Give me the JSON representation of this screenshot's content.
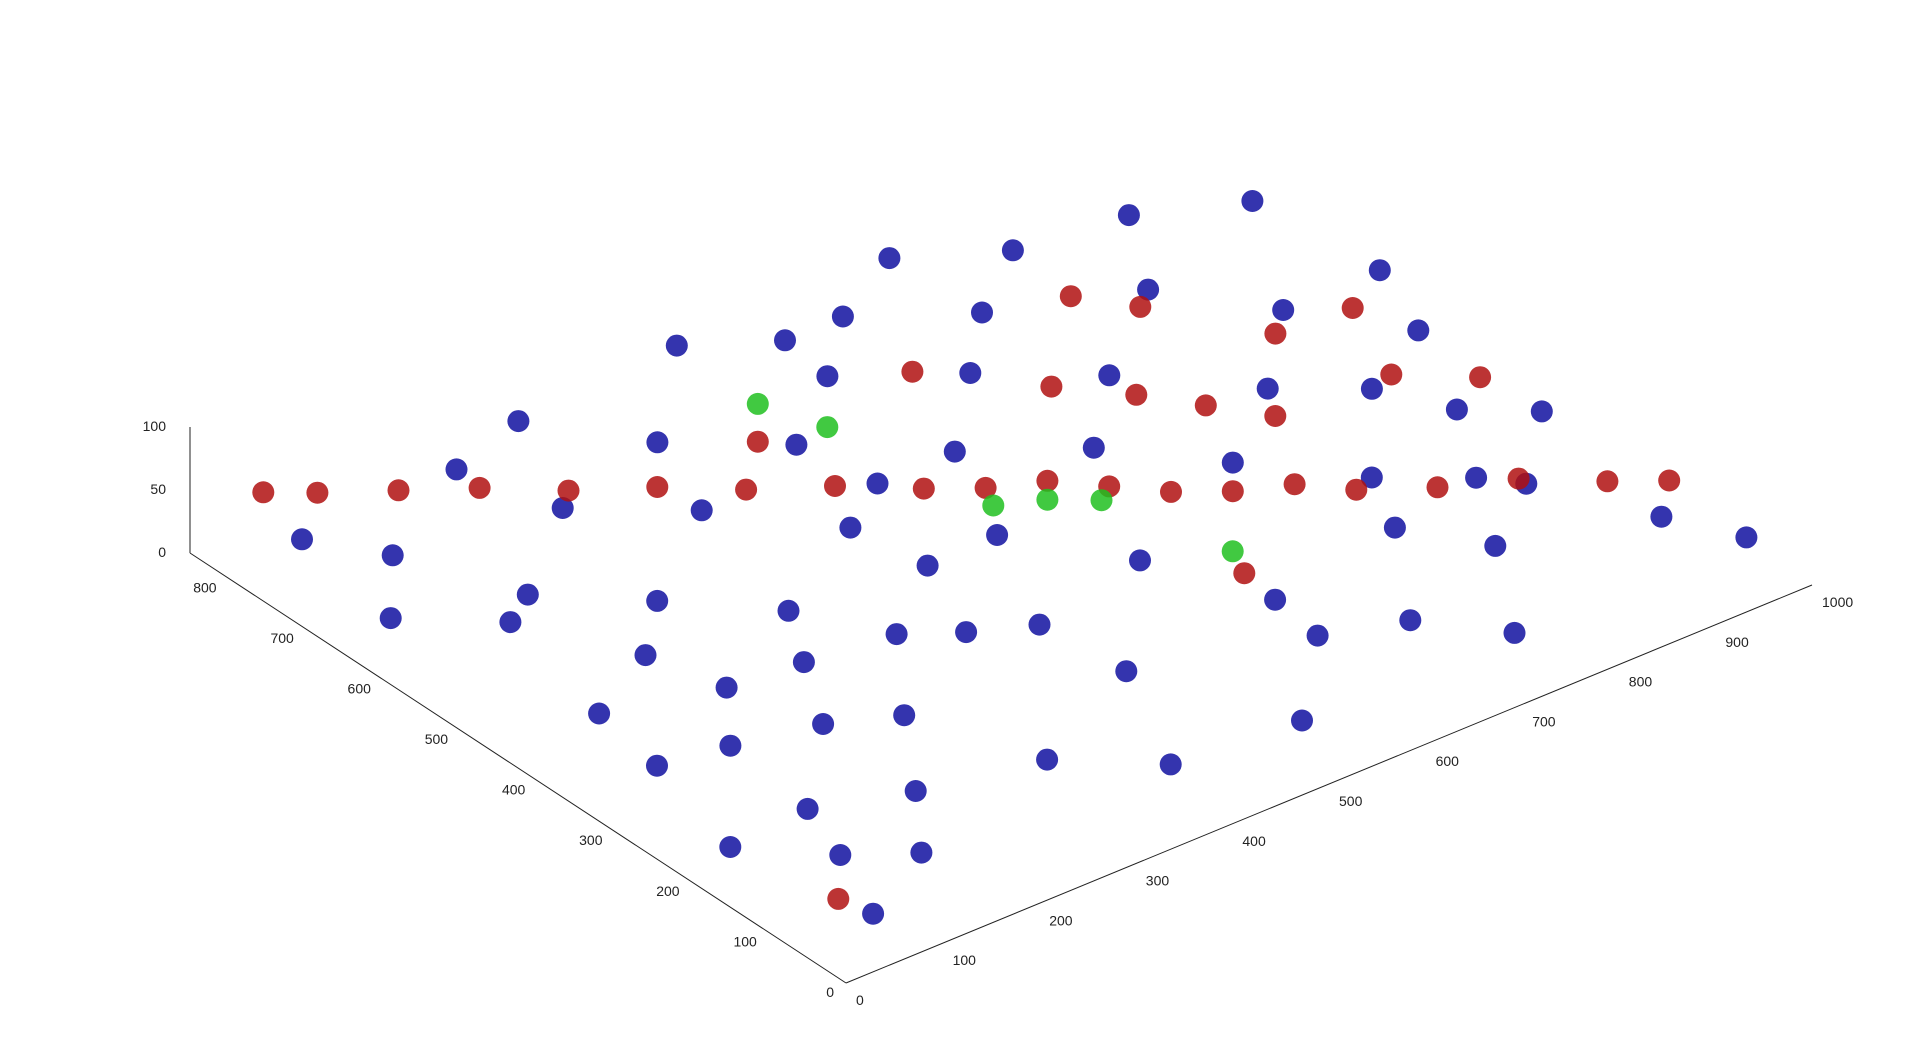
{
  "chart_data": {
    "type": "scatter",
    "projection": "3d-isometric",
    "title": "",
    "xlabel": "",
    "ylabel": "",
    "zlabel": "",
    "xlim": [
      0,
      1000
    ],
    "ylim": [
      0,
      850
    ],
    "zlim": [
      0,
      100
    ],
    "grid": false,
    "legend": "none",
    "x_ticks": [
      {
        "value": 0,
        "label": "0"
      },
      {
        "value": 100,
        "label": "100"
      },
      {
        "value": 200,
        "label": "200"
      },
      {
        "value": 300,
        "label": "300"
      },
      {
        "value": 400,
        "label": "400"
      },
      {
        "value": 500,
        "label": "500"
      },
      {
        "value": 600,
        "label": "600"
      },
      {
        "value": 700,
        "label": "700"
      },
      {
        "value": 800,
        "label": "800"
      },
      {
        "value": 900,
        "label": "900"
      },
      {
        "value": 1000,
        "label": "1000"
      }
    ],
    "y_ticks": [
      {
        "value": 0,
        "label": "0"
      },
      {
        "value": 100,
        "label": "100"
      },
      {
        "value": 200,
        "label": "200"
      },
      {
        "value": 300,
        "label": "300"
      },
      {
        "value": 400,
        "label": "400"
      },
      {
        "value": 500,
        "label": "500"
      },
      {
        "value": 600,
        "label": "600"
      },
      {
        "value": 700,
        "label": "700"
      },
      {
        "value": 800,
        "label": "800"
      }
    ],
    "z_ticks": [
      {
        "value": 0,
        "label": "0"
      },
      {
        "value": 50,
        "label": "50"
      },
      {
        "value": 100,
        "label": "100"
      }
    ],
    "series": [
      {
        "color": "#1010a0",
        "points": [
          [
            60,
            40,
            20
          ],
          [
            90,
            120,
            25
          ],
          [
            40,
            200,
            15
          ],
          [
            150,
            90,
            20
          ],
          [
            200,
            160,
            25
          ],
          [
            120,
            300,
            30
          ],
          [
            80,
            420,
            20
          ],
          [
            180,
            380,
            25
          ],
          [
            260,
            250,
            30
          ],
          [
            320,
            140,
            20
          ],
          [
            400,
            80,
            15
          ],
          [
            450,
            200,
            25
          ],
          [
            380,
            320,
            30
          ],
          [
            300,
            450,
            20
          ],
          [
            220,
            520,
            25
          ],
          [
            150,
            600,
            20
          ],
          [
            90,
            700,
            30
          ],
          [
            60,
            780,
            20
          ],
          [
            250,
            680,
            25
          ],
          [
            330,
            600,
            30
          ],
          [
            420,
            520,
            20
          ],
          [
            500,
            430,
            25
          ],
          [
            560,
            320,
            30
          ],
          [
            620,
            220,
            20
          ],
          [
            680,
            120,
            25
          ],
          [
            740,
            60,
            20
          ],
          [
            800,
            160,
            30
          ],
          [
            860,
            260,
            25
          ],
          [
            920,
            360,
            20
          ],
          [
            960,
            460,
            30
          ],
          [
            900,
            560,
            25
          ],
          [
            840,
            660,
            20
          ],
          [
            780,
            760,
            30
          ],
          [
            700,
            820,
            25
          ],
          [
            620,
            780,
            20
          ],
          [
            540,
            700,
            30
          ],
          [
            460,
            640,
            25
          ],
          [
            380,
            720,
            20
          ],
          [
            300,
            800,
            30
          ],
          [
            220,
            780,
            25
          ],
          [
            560,
            560,
            20
          ],
          [
            640,
            480,
            30
          ],
          [
            720,
            400,
            25
          ],
          [
            800,
            320,
            20
          ],
          [
            880,
            220,
            30
          ],
          [
            940,
            120,
            25
          ],
          [
            980,
            60,
            20
          ],
          [
            640,
            640,
            25
          ],
          [
            720,
            560,
            30
          ],
          [
            480,
            560,
            20
          ],
          [
            160,
            460,
            25
          ],
          [
            100,
            560,
            30
          ],
          [
            40,
            640,
            20
          ],
          [
            340,
            360,
            25
          ],
          [
            420,
            420,
            30
          ],
          [
            260,
            380,
            20
          ],
          [
            760,
            240,
            25
          ],
          [
            600,
            140,
            30
          ],
          [
            520,
            60,
            20
          ],
          [
            440,
            300,
            25
          ],
          [
            700,
            700,
            30
          ],
          [
            820,
            480,
            20
          ],
          [
            880,
            420,
            25
          ],
          [
            960,
            300,
            30
          ],
          [
            900,
            760,
            20
          ],
          [
            1000,
            560,
            25
          ],
          [
            980,
            700,
            30
          ],
          [
            120,
            200,
            20
          ],
          [
            60,
            320,
            25
          ],
          [
            200,
            280,
            30
          ],
          [
            560,
            780,
            20
          ],
          [
            480,
            820,
            25
          ]
        ]
      },
      {
        "color": "#b01010",
        "points": [
          [
            20,
            780,
            70
          ],
          [
            60,
            760,
            65
          ],
          [
            120,
            730,
            60
          ],
          [
            180,
            700,
            55
          ],
          [
            240,
            660,
            50
          ],
          [
            300,
            620,
            50
          ],
          [
            360,
            580,
            45
          ],
          [
            420,
            540,
            45
          ],
          [
            480,
            500,
            40
          ],
          [
            520,
            470,
            40
          ],
          [
            560,
            440,
            45
          ],
          [
            600,
            410,
            40
          ],
          [
            640,
            380,
            35
          ],
          [
            680,
            350,
            35
          ],
          [
            720,
            320,
            40
          ],
          [
            760,
            290,
            35
          ],
          [
            820,
            260,
            30
          ],
          [
            880,
            230,
            30
          ],
          [
            940,
            190,
            25
          ],
          [
            980,
            160,
            25
          ],
          [
            700,
            500,
            45
          ],
          [
            740,
            460,
            40
          ],
          [
            780,
            420,
            35
          ],
          [
            660,
            560,
            40
          ],
          [
            900,
            420,
            30
          ],
          [
            960,
            380,
            25
          ],
          [
            580,
            640,
            45
          ],
          [
            420,
            640,
            40
          ],
          [
            860,
            520,
            35
          ],
          [
            940,
            520,
            30
          ],
          [
            40,
            60,
            30
          ],
          [
            620,
            260,
            25
          ],
          [
            760,
            660,
            40
          ],
          [
            800,
            620,
            35
          ]
        ]
      },
      {
        "color": "#20c020",
        "points": [
          [
            420,
            640,
            70
          ],
          [
            460,
            600,
            55
          ],
          [
            520,
            460,
            30
          ],
          [
            560,
            440,
            30
          ],
          [
            600,
            420,
            25
          ],
          [
            640,
            300,
            20
          ]
        ]
      }
    ]
  }
}
